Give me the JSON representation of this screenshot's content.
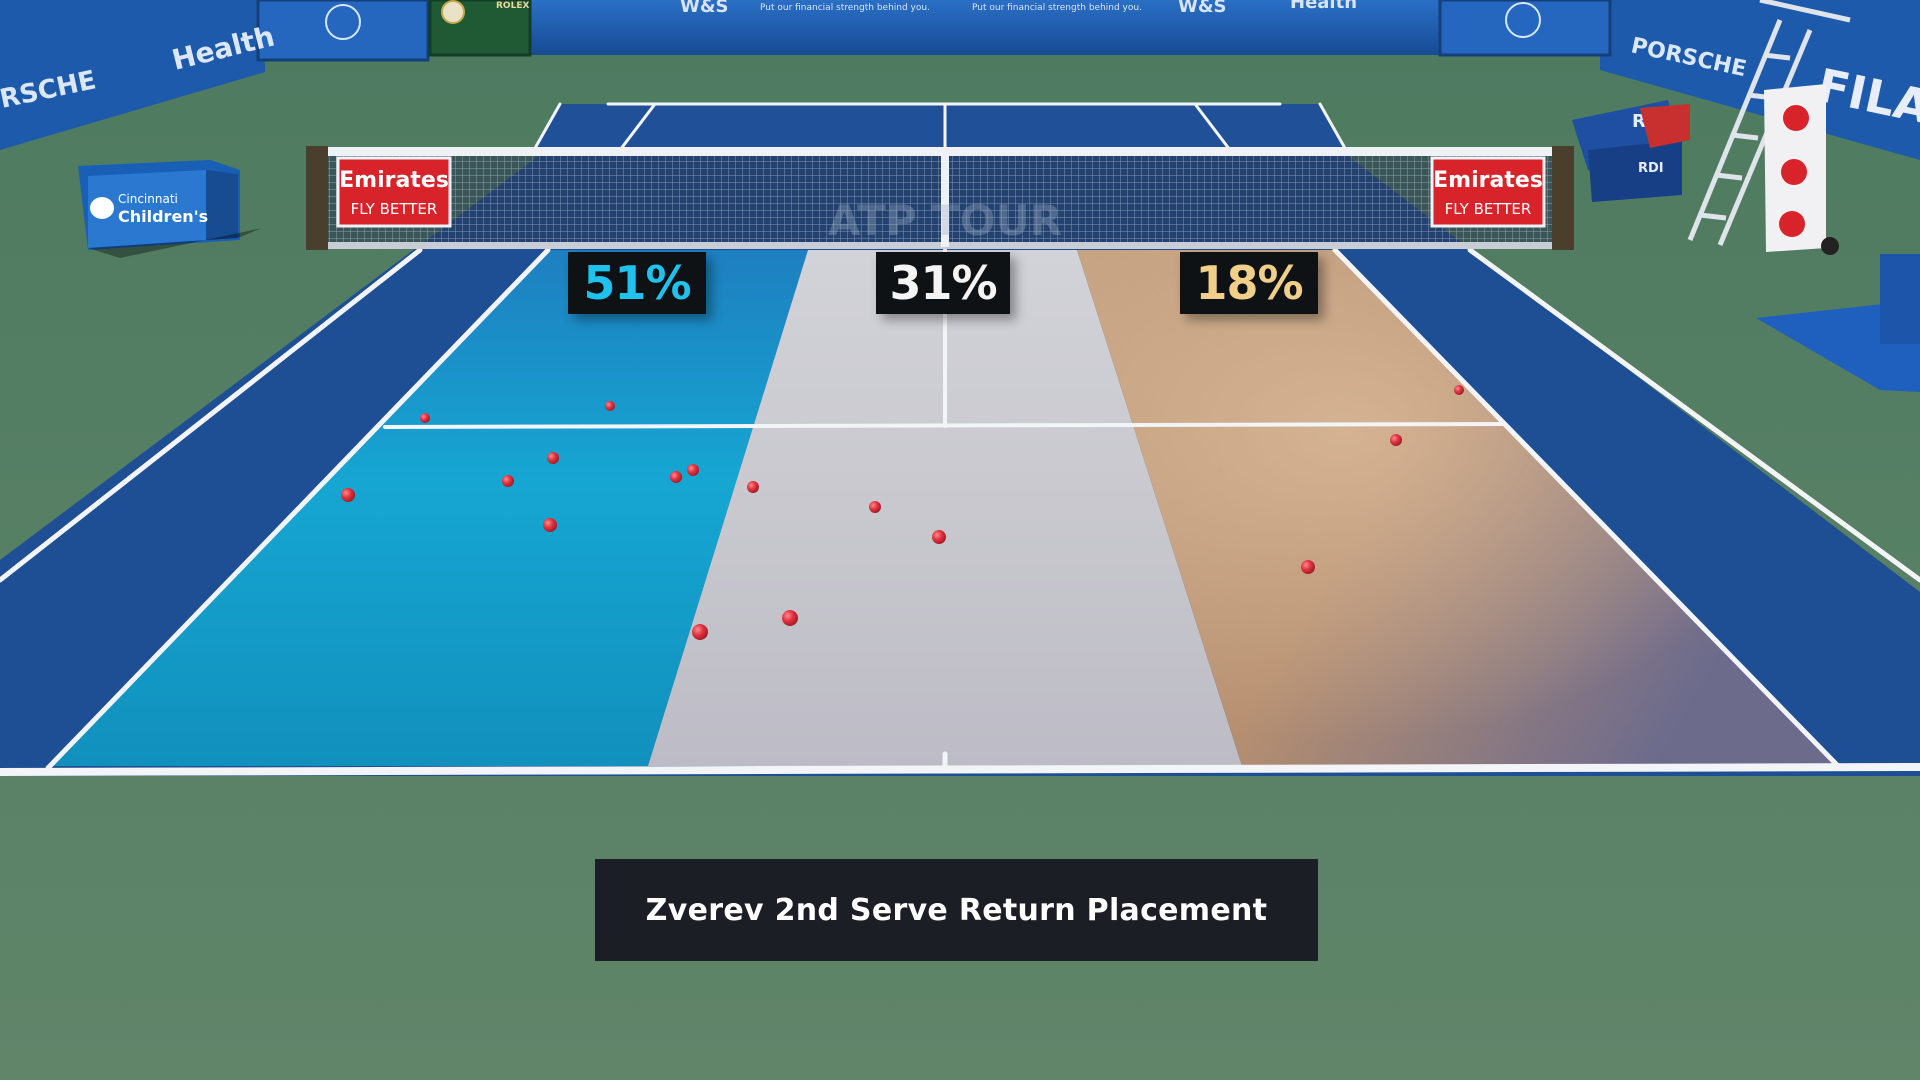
{
  "caption": "Zverev 2nd Serve Return Placement",
  "zones": [
    {
      "id": "left",
      "percentage": "51%",
      "color": "#1fc2ec"
    },
    {
      "id": "center",
      "percentage": "31%",
      "color": "#f4f4f4"
    },
    {
      "id": "right",
      "percentage": "18%",
      "color": "#f0cf8a"
    }
  ],
  "sponsors": {
    "net_left_line1": "Emirates",
    "net_left_line2": "FLY BETTER",
    "net_right_line1": "Emirates",
    "net_right_line2": "FLY BETTER",
    "box_left_line1": "Cincinnati",
    "box_left_line2": "Children's",
    "wall_left_1": "RSCHE",
    "wall_left_2": "Health",
    "wall_top_1": "W&S",
    "wall_top_tagline": "Put our financial strength behind you.",
    "wall_top_2": "Health",
    "wall_top_clock": "ROLEX",
    "wall_right_1": "PORSCHE",
    "wall_right_2": "FILA",
    "rdi": "RDI",
    "net_band": "ATP TOUR"
  },
  "colors": {
    "zone_left": "#1a9fcc",
    "zone_center": "#c9c9cf",
    "zone_right": "#b38e6d",
    "court_blue": "#1e4f94",
    "surround_green": "#5b7f65",
    "ball_red": "#e0323e",
    "wall_blue": "#1f5fb4"
  }
}
